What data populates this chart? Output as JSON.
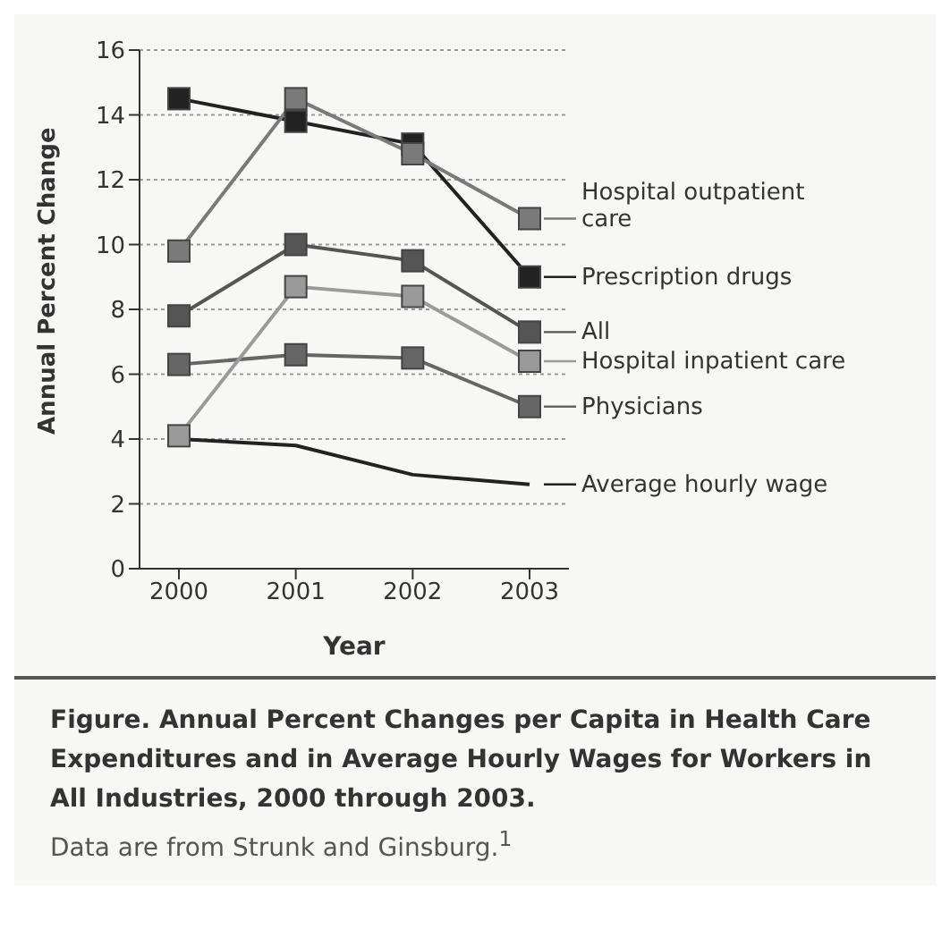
{
  "chart_data": {
    "type": "line",
    "title": "Figure. Annual Percent Changes per Capita in Health Care Expenditures and in Average Hourly Wages for Workers in All Industries, 2000 through 2003.",
    "annotations": [
      "Data are from Strunk and Ginsburg.$^{1}$"
    ],
    "xlabel": "Year",
    "ylabel": "Annual Percent Change",
    "categories": [
      "2000",
      "2001",
      "2002",
      "2003"
    ],
    "series": [
      {
        "name": "Hospital outpatient care",
        "color": "#7a7a7a",
        "values": [
          9.8,
          14.5,
          12.8,
          10.8
        ]
      },
      {
        "name": "Prescription drugs",
        "color": "#222222",
        "values": [
          14.5,
          13.8,
          13.1,
          9.0
        ]
      },
      {
        "name": "All",
        "color": "#555555",
        "values": [
          7.8,
          10.0,
          9.5,
          7.3
        ]
      },
      {
        "name": "Hospital inpatient care",
        "color": "#9a9a9a",
        "values": [
          4.1,
          8.7,
          8.4,
          6.4
        ]
      },
      {
        "name": "Physicians",
        "color": "#666666",
        "values": [
          6.3,
          6.6,
          6.5,
          5.0
        ]
      },
      {
        "name": "Average hourly wage",
        "color": "#222222",
        "marker": "none",
        "values": [
          4.0,
          3.8,
          2.9,
          2.6
        ]
      }
    ],
    "ylim": [
      0,
      16
    ],
    "yticks": [
      0,
      2,
      4,
      6,
      8,
      10,
      12,
      14,
      16
    ],
    "grid": "y",
    "legend": "right",
    "marker": "square",
    "line_style": "solid"
  }
}
